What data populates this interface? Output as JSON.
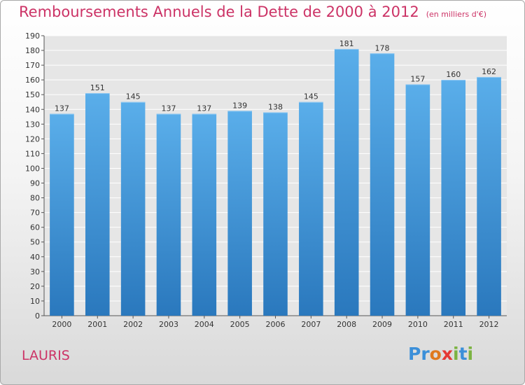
{
  "header": {
    "title": "Remboursements Annuels de la Dette de 2000 à 2012",
    "unit": "(en milliers d'€)"
  },
  "footer": {
    "commune": "LAURIS",
    "logo": "Proxiti"
  },
  "colors": {
    "accent_text": "#cc3366",
    "bar_top": "#5aaeea",
    "bar_bottom": "#2a78bd",
    "grid": "#ffffff"
  },
  "chart_data": {
    "type": "bar",
    "title": "Remboursements Annuels de la Dette de 2000 à 2012",
    "subtitle": "(en milliers d'€)",
    "xlabel": "",
    "ylabel": "",
    "categories": [
      "2000",
      "2001",
      "2002",
      "2003",
      "2004",
      "2005",
      "2006",
      "2007",
      "2008",
      "2009",
      "2010",
      "2011",
      "2012"
    ],
    "values": [
      137,
      151,
      145,
      137,
      137,
      139,
      138,
      145,
      181,
      178,
      157,
      160,
      162
    ],
    "ylim": [
      0,
      190
    ],
    "ytick_step": 10,
    "grid": true,
    "data_labels": true
  }
}
